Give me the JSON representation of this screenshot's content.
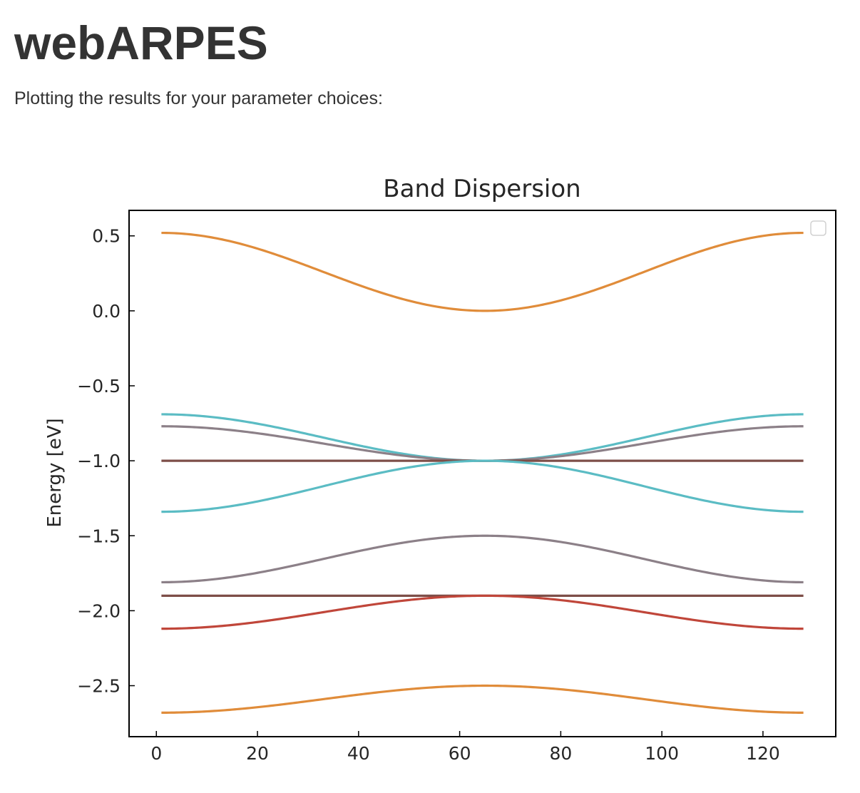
{
  "page": {
    "title": "webARPES",
    "subtitle": "Plotting the results for your parameter choices:"
  },
  "chart_data": {
    "type": "line",
    "title": "Band Dispersion",
    "xlabel": "",
    "ylabel": "Energy [eV]",
    "xlim": [
      -5.4,
      134.4
    ],
    "ylim": [
      -2.84,
      0.67
    ],
    "xticks": [
      0,
      20,
      40,
      60,
      80,
      100,
      120
    ],
    "yticks": [
      0.5,
      0.0,
      -0.5,
      -1.0,
      -1.5,
      -2.0,
      -2.5
    ],
    "grid": false,
    "legend": {
      "position": "top-right",
      "entries": []
    },
    "x_range": [
      1,
      128
    ],
    "x_center": 65,
    "series": [
      {
        "name": "band-upper-orange",
        "color": "#e08c3a",
        "edge_energy": 0.52,
        "center_energy": 0.0
      },
      {
        "name": "band-cyan-upper",
        "color": "#5bbcc4",
        "edge_energy": -0.69,
        "center_energy": -1.0
      },
      {
        "name": "band-gray-upper",
        "color": "#8c8088",
        "edge_energy": -0.77,
        "center_energy": -1.0
      },
      {
        "name": "band-brown-flat-upper",
        "color": "#7d4e48",
        "edge_energy": -1.0,
        "center_energy": -1.0
      },
      {
        "name": "band-cyan-lower",
        "color": "#5bbcc4",
        "edge_energy": -1.34,
        "center_energy": -1.0
      },
      {
        "name": "band-gray-lower",
        "color": "#8c8088",
        "edge_energy": -1.81,
        "center_energy": -1.5
      },
      {
        "name": "band-brown-flat-lower",
        "color": "#7d4e48",
        "edge_energy": -1.9,
        "center_energy": -1.9
      },
      {
        "name": "band-red",
        "color": "#c0463a",
        "edge_energy": -2.12,
        "center_energy": -1.9
      },
      {
        "name": "band-lower-orange",
        "color": "#e08c3a",
        "edge_energy": -2.68,
        "center_energy": -2.5
      }
    ]
  }
}
